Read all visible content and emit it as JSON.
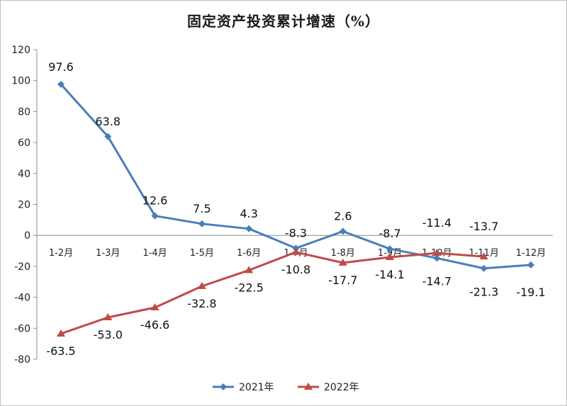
{
  "chart_data": {
    "type": "line",
    "title": "固定资产投资累计增速（%）",
    "categories": [
      "1-2月",
      "1-3月",
      "1-4月",
      "1-5月",
      "1-6月",
      "1-7月",
      "1-8月",
      "1-9月",
      "1-10月",
      "1-11月",
      "1-12月"
    ],
    "series": [
      {
        "name": "2021年",
        "color": "#4a7ebb",
        "marker": "diamond",
        "values": [
          97.6,
          63.8,
          12.6,
          7.5,
          4.3,
          -8.3,
          2.6,
          -8.7,
          -14.7,
          -21.3,
          -19.1
        ],
        "labels": [
          "97.6",
          "63.8",
          "12.6",
          "7.5",
          "4.3",
          "-8.3",
          "2.6",
          "-8.7",
          "-14.7",
          "-21.3",
          "-19.1"
        ]
      },
      {
        "name": "2022年",
        "color": "#be4b48",
        "marker": "triangle",
        "values": [
          -63.5,
          -53.0,
          -46.6,
          -32.8,
          -22.5,
          -10.8,
          -17.7,
          -14.1,
          -11.4,
          -13.7,
          null
        ],
        "labels": [
          "-63.5",
          "-53.0",
          "-46.6",
          "-32.8",
          "-22.5",
          "-10.8",
          "-17.7",
          "-14.1",
          "-11.4",
          "-13.7",
          ""
        ]
      }
    ],
    "ylim": [
      -80,
      120
    ],
    "yticks": [
      -80,
      -60,
      -40,
      -20,
      0,
      20,
      40,
      60,
      80,
      100,
      120
    ],
    "xlabel": "",
    "ylabel": "",
    "grid": false,
    "legend": "bottom-center"
  }
}
